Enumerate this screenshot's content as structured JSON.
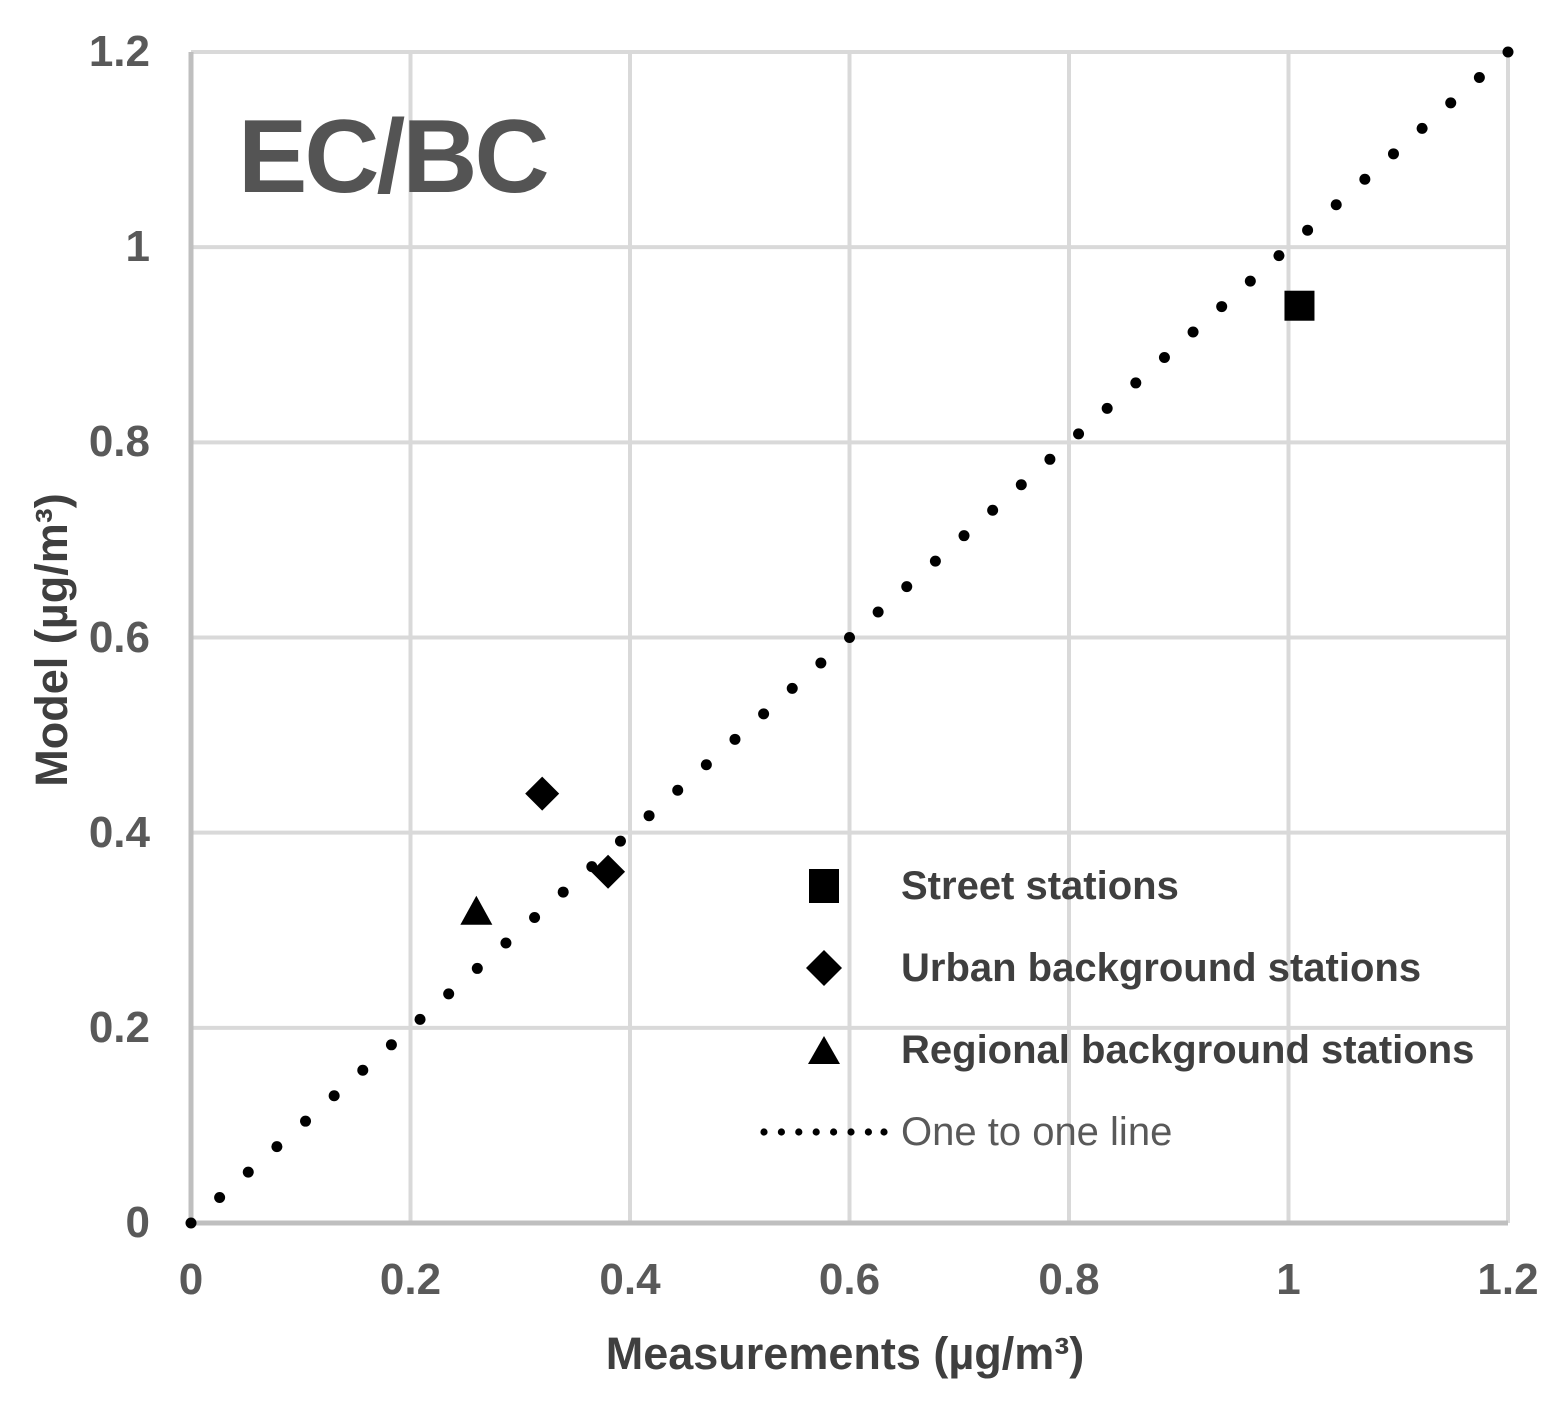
{
  "chart_data": {
    "type": "scatter",
    "title": "EC/BC",
    "xlabel": "Measurements (µg/m³)",
    "ylabel": "Model (µg/m³)",
    "xlim": [
      0,
      1.2
    ],
    "ylim": [
      0,
      1.2
    ],
    "grid": true,
    "x_ticks": [
      0,
      0.2,
      0.4,
      0.6,
      0.8,
      1,
      1.2
    ],
    "y_ticks": [
      0,
      0.2,
      0.4,
      0.6,
      0.8,
      1,
      1.2
    ],
    "x_tick_labels": [
      "0",
      "0.2",
      "0.4",
      "0.6",
      "0.8",
      "1",
      "1.2"
    ],
    "y_tick_labels": [
      "0",
      "0.2",
      "0.4",
      "0.6",
      "0.8",
      "1",
      "1.2"
    ],
    "series": [
      {
        "name": "Street stations",
        "marker": "square",
        "points": [
          [
            1.01,
            0.94
          ]
        ]
      },
      {
        "name": "Urban background stations",
        "marker": "diamond",
        "points": [
          [
            0.32,
            0.44
          ],
          [
            0.38,
            0.36
          ]
        ]
      },
      {
        "name": "Regional background stations",
        "marker": "triangle",
        "points": [
          [
            0.26,
            0.32
          ]
        ]
      }
    ],
    "reference_line": {
      "name": "One to one line",
      "style": "dotted",
      "from": [
        0,
        0
      ],
      "to": [
        1.2,
        1.2
      ]
    },
    "legend": {
      "position": "inside-bottom-right",
      "items": [
        {
          "label": "Street stations",
          "marker": "square"
        },
        {
          "label": "Urban background stations",
          "marker": "diamond"
        },
        {
          "label": "Regional background stations",
          "marker": "triangle"
        },
        {
          "label": "One to one line",
          "marker": "dotted-line"
        }
      ]
    },
    "colors": {
      "marker": "#000000",
      "grid": "#d9d9d9",
      "axis": "#bfbfbf",
      "tick_text": "#595959",
      "axis_label_text": "#3f3f3f",
      "title_text": "#545454",
      "background": "#ffffff"
    }
  }
}
